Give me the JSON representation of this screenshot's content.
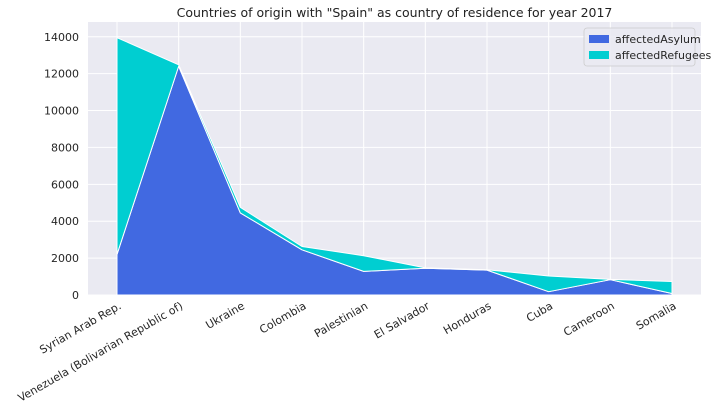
{
  "chart_data": {
    "type": "area",
    "stacked": true,
    "title": "Countries of origin with \"Spain\" as country of residence for year 2017",
    "xlabel": "",
    "ylabel": "",
    "categories": [
      "Syrian Arab Rep.",
      "Venezuela (Bolivarian Republic of)",
      "Ukraine",
      "Colombia",
      "Palestinian",
      "El Salvador",
      "Honduras",
      "Cuba",
      "Cameroon",
      "Somalia"
    ],
    "series": [
      {
        "name": "affectedAsylum",
        "color": "#4169e1",
        "values": [
          2200,
          12400,
          4450,
          2450,
          1280,
          1450,
          1350,
          180,
          830,
          80
        ]
      },
      {
        "name": "affectedRefugees",
        "color": "#00ced1",
        "values": [
          11750,
          80,
          300,
          180,
          850,
          20,
          20,
          850,
          20,
          650
        ]
      }
    ],
    "ylim": [
      0,
      14800
    ],
    "yticks": [
      0,
      2000,
      4000,
      6000,
      8000,
      10000,
      12000,
      14000
    ],
    "grid": true,
    "legend_position": "top-right",
    "background": "#eaeaf2"
  }
}
